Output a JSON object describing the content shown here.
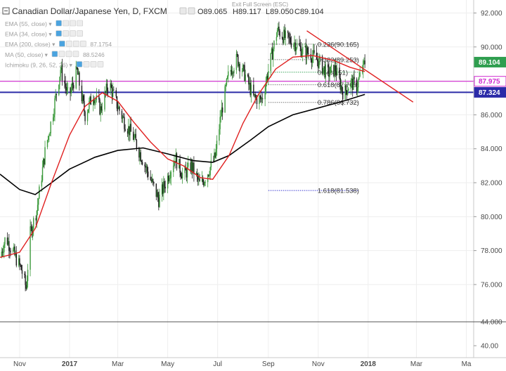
{
  "chart_data": {
    "type": "candlestick",
    "title": "Canadian Dollar/Japanese Yen, D, FXCM",
    "ohlc": {
      "open": "O89.065",
      "high": "H89.117",
      "low": "L89.050",
      "close": "C89.104"
    },
    "exit_fullscreen": "Exit Full Screen (ESC)",
    "indicators": [
      {
        "label": "EMA (55, close)",
        "value": "",
        "color": "#b0b0b0",
        "visible": false
      },
      {
        "label": "EMA (34, close)",
        "value": "",
        "color": "#b0b0b0",
        "visible": false
      },
      {
        "label": "EMA (200, close)",
        "value": "87.1754",
        "color": "#000000",
        "visible": true
      },
      {
        "label": "MA (50, close)",
        "value": "88.5246",
        "color": "#e02020",
        "visible": true
      },
      {
        "label": "Ichimoku (9, 26, 52, 26)",
        "value": "",
        "color": "#b0b0b0",
        "visible": false
      }
    ],
    "x_ticks": [
      {
        "label": "Nov",
        "date": "2016-11-01"
      },
      {
        "label": "2017",
        "date": "2017-01-01"
      },
      {
        "label": "Mar",
        "date": "2017-03-01"
      },
      {
        "label": "May",
        "date": "2017-05-01"
      },
      {
        "label": "Jul",
        "date": "2017-07-01"
      },
      {
        "label": "Sep",
        "date": "2017-09-01"
      },
      {
        "label": "Nov",
        "date": "2017-11-01"
      },
      {
        "label": "2018",
        "date": "2018-01-01"
      },
      {
        "label": "Mar",
        "date": "2018-03-01"
      },
      {
        "label": "Ma",
        "date": "2018-05-01"
      }
    ],
    "y_ticks_main": [
      "92.000",
      "90.000",
      "88.000",
      "86.000",
      "84.000",
      "82.000",
      "80.000",
      "78.000",
      "76.000"
    ],
    "y_ticks_lower": [
      "44.000",
      "40.00"
    ],
    "ylim": [
      74.3,
      92.6
    ],
    "xlim": [
      "2016-10-08",
      "2018-05-10"
    ],
    "price_tags": [
      {
        "label": "89.104",
        "value": 89.104,
        "bg": "#2f9e4f",
        "fg": "#ffffff"
      },
      {
        "label": "87.975",
        "value": 87.975,
        "bg": "#ffffff",
        "fg": "#d02ad0",
        "border": "#d02ad0"
      },
      {
        "label": "87.324",
        "value": 87.324,
        "bg": "#2b2ba8",
        "fg": "#ffffff"
      }
    ],
    "horizontal_lines": [
      {
        "value": 87.975,
        "color": "#d02ad0"
      },
      {
        "value": 87.324,
        "color": "#2b2ba8"
      }
    ],
    "trendline": {
      "start": [
        "2017-10-18",
        90.95
      ],
      "end": [
        "2018-02-25",
        86.75
      ],
      "color": "#e02020"
    },
    "fib_levels": [
      {
        "label": "0.236(90.165)",
        "value": 90.165,
        "color": "#777777"
      },
      {
        "label": "0.382(89.253)",
        "value": 89.253,
        "color": "#777777"
      },
      {
        "label": "0.5(88.51)",
        "value": 88.51,
        "color": "#3aa55a"
      },
      {
        "label": "0.618(87.769)",
        "value": 87.769,
        "color": "#777777"
      },
      {
        "label": "0.786(86.732)",
        "value": 86.732,
        "color": "#777777"
      },
      {
        "label": "1.618(81.538)",
        "value": 81.538,
        "color": "#3b3bd0"
      }
    ],
    "fib_range": [
      "2017-09-01",
      "2017-12-20"
    ],
    "ema200": [
      [
        "2016-10-08",
        82.5
      ],
      [
        "2016-11-01",
        81.6
      ],
      [
        "2016-11-20",
        81.3
      ],
      [
        "2016-12-10",
        82.0
      ],
      [
        "2017-01-01",
        82.8
      ],
      [
        "2017-02-01",
        83.5
      ],
      [
        "2017-03-01",
        83.9
      ],
      [
        "2017-04-01",
        84.05
      ],
      [
        "2017-05-01",
        83.7
      ],
      [
        "2017-06-01",
        83.3
      ],
      [
        "2017-06-25",
        83.2
      ],
      [
        "2017-07-15",
        83.6
      ],
      [
        "2017-08-10",
        84.5
      ],
      [
        "2017-09-01",
        85.3
      ],
      [
        "2017-10-01",
        86.0
      ],
      [
        "2017-11-01",
        86.4
      ],
      [
        "2017-12-01",
        86.8
      ],
      [
        "2017-12-28",
        87.2
      ]
    ],
    "ma50": [
      [
        "2016-10-08",
        77.6
      ],
      [
        "2016-11-01",
        77.9
      ],
      [
        "2016-11-20",
        79.3
      ],
      [
        "2016-12-10",
        82.0
      ],
      [
        "2017-01-01",
        84.8
      ],
      [
        "2017-01-20",
        86.5
      ],
      [
        "2017-02-10",
        87.3
      ],
      [
        "2017-03-01",
        86.8
      ],
      [
        "2017-03-20",
        85.6
      ],
      [
        "2017-04-10",
        84.4
      ],
      [
        "2017-05-01",
        83.4
      ],
      [
        "2017-05-20",
        83.0
      ],
      [
        "2017-06-10",
        82.3
      ],
      [
        "2017-06-25",
        82.2
      ],
      [
        "2017-07-15",
        83.6
      ],
      [
        "2017-08-01",
        85.5
      ],
      [
        "2017-08-20",
        87.2
      ],
      [
        "2017-09-10",
        88.7
      ],
      [
        "2017-10-01",
        89.4
      ],
      [
        "2017-10-25",
        89.5
      ],
      [
        "2017-11-20",
        89.2
      ],
      [
        "2017-12-10",
        88.8
      ],
      [
        "2017-12-28",
        88.55
      ]
    ],
    "candle_path": [
      [
        "2016-10-08",
        77.6
      ],
      [
        "2016-10-15",
        78.8
      ],
      [
        "2016-10-25",
        77.8
      ],
      [
        "2016-11-03",
        76.9
      ],
      [
        "2016-11-09",
        75.8
      ],
      [
        "2016-11-14",
        79.0
      ],
      [
        "2016-11-22",
        80.4
      ],
      [
        "2016-12-02",
        83.8
      ],
      [
        "2016-12-12",
        86.2
      ],
      [
        "2016-12-21",
        88.7
      ],
      [
        "2016-12-31",
        87.0
      ],
      [
        "2017-01-10",
        88.6
      ],
      [
        "2017-01-20",
        86.0
      ],
      [
        "2017-01-30",
        87.2
      ],
      [
        "2017-02-08",
        86.3
      ],
      [
        "2017-02-18",
        87.9
      ],
      [
        "2017-02-28",
        86.6
      ],
      [
        "2017-03-10",
        85.5
      ],
      [
        "2017-03-20",
        84.7
      ],
      [
        "2017-04-01",
        83.3
      ],
      [
        "2017-04-10",
        82.2
      ],
      [
        "2017-04-20",
        81.0
      ],
      [
        "2017-04-30",
        82.2
      ],
      [
        "2017-05-10",
        83.5
      ],
      [
        "2017-05-20",
        82.4
      ],
      [
        "2017-05-30",
        83.0
      ],
      [
        "2017-06-10",
        81.8
      ],
      [
        "2017-06-20",
        82.7
      ],
      [
        "2017-06-28",
        83.5
      ],
      [
        "2017-07-05",
        86.0
      ],
      [
        "2017-07-15",
        88.5
      ],
      [
        "2017-07-25",
        89.3
      ],
      [
        "2017-08-04",
        88.3
      ],
      [
        "2017-08-14",
        87.0
      ],
      [
        "2017-08-24",
        86.9
      ],
      [
        "2017-09-01",
        88.6
      ],
      [
        "2017-09-12",
        91.0
      ],
      [
        "2017-09-22",
        90.5
      ],
      [
        "2017-10-02",
        90.3
      ],
      [
        "2017-10-12",
        89.8
      ],
      [
        "2017-10-22",
        89.6
      ],
      [
        "2017-11-02",
        89.1
      ],
      [
        "2017-11-12",
        88.4
      ],
      [
        "2017-11-22",
        88.7
      ],
      [
        "2017-12-02",
        87.2
      ],
      [
        "2017-12-10",
        87.9
      ],
      [
        "2017-12-18",
        87.7
      ],
      [
        "2017-12-28",
        89.1
      ]
    ]
  }
}
